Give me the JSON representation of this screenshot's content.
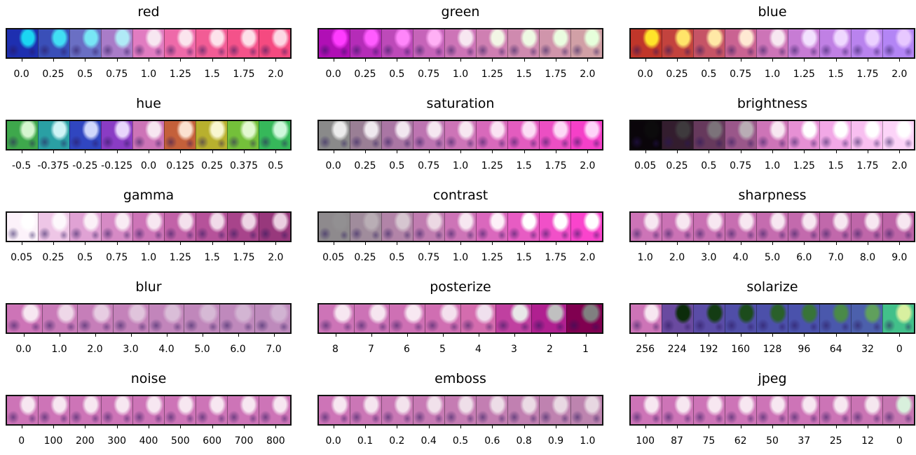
{
  "panels": [
    {
      "title": "red",
      "labels": [
        "0.0",
        "0.25",
        "0.5",
        "0.75",
        "1.0",
        "1.25",
        "1.5",
        "1.75",
        "2.0"
      ],
      "swatches": [
        "#1e2fb0",
        "#3a4fb8",
        "#6a6fc4",
        "#a97cc8",
        "#e17cc1",
        "#ee6aa9",
        "#f25c95",
        "#f4528a",
        "#f54a80"
      ],
      "accent": [
        "#1bd6f2",
        "#41dff4",
        "#78e6f5",
        "#b0eaf6",
        "#f7e7f1",
        "#fbe5ee",
        "#fde3eb",
        "#fde0e9",
        "#fdd8e4"
      ]
    },
    {
      "title": "green",
      "labels": [
        "0.0",
        "0.25",
        "0.5",
        "0.75",
        "1.0",
        "1.25",
        "1.5",
        "1.75",
        "2.0"
      ],
      "swatches": [
        "#b00fb5",
        "#b52cb8",
        "#bd4ab9",
        "#c664b9",
        "#cd74b7",
        "#cf7fb2",
        "#cf8aaf",
        "#d095ab",
        "#d1a0a6"
      ],
      "accent": [
        "#ff3cff",
        "#ff5cff",
        "#ff86fa",
        "#ffb0f5",
        "#f7e7f1",
        "#f2f6e5",
        "#eefae3",
        "#eafde0",
        "#e6ffdb"
      ]
    },
    {
      "title": "blue",
      "labels": [
        "0.0",
        "0.25",
        "0.5",
        "0.75",
        "1.0",
        "1.25",
        "1.5",
        "1.75",
        "2.0"
      ],
      "swatches": [
        "#c0362a",
        "#c3433e",
        "#c65466",
        "#ca6392",
        "#cd74b7",
        "#c77cd4",
        "#c080e4",
        "#b983ee",
        "#b385f5"
      ],
      "accent": [
        "#ffe42a",
        "#ffe56a",
        "#ffe8a6",
        "#ffe9d3",
        "#f7e7f1",
        "#f3e1ff",
        "#efd8ff",
        "#ebd0ff",
        "#e7c8ff"
      ]
    },
    {
      "title": "hue",
      "labels": [
        "-0.5",
        "-0.375",
        "-0.25",
        "-0.125",
        "0.0",
        "0.125",
        "0.25",
        "0.375",
        "0.5"
      ],
      "swatches": [
        "#3ea84c",
        "#2aa0a4",
        "#3046c0",
        "#8a3cc4",
        "#cd74b7",
        "#c4603a",
        "#b8b02e",
        "#74c03a",
        "#36b85a"
      ],
      "accent": [
        "#d6f6d0",
        "#d0f4f6",
        "#d0d8fb",
        "#e8d6fb",
        "#f7e7f1",
        "#fbe2d0",
        "#f8f6d0",
        "#e2f8d0",
        "#d0f8dc"
      ]
    },
    {
      "title": "saturation",
      "labels": [
        "0.0",
        "0.25",
        "0.5",
        "0.75",
        "1.0",
        "1.25",
        "1.5",
        "1.75",
        "2.0"
      ],
      "swatches": [
        "#8a8a8a",
        "#9a7f95",
        "#aa76a4",
        "#bd74b1",
        "#cd74b7",
        "#d869bb",
        "#e35cbf",
        "#ec4fc3",
        "#f540c8"
      ],
      "accent": [
        "#ececec",
        "#efe9ee",
        "#f2e7f0",
        "#f5e7f1",
        "#f7e7f1",
        "#fae2f3",
        "#fcdef5",
        "#fdd9f6",
        "#fed4f8"
      ]
    },
    {
      "title": "brightness",
      "labels": [
        "0.05",
        "0.25",
        "0.5",
        "0.75",
        "1.0",
        "1.25",
        "1.5",
        "1.75",
        "2.0"
      ],
      "swatches": [
        "#0a050a",
        "#331d2e",
        "#66395c",
        "#9a578a",
        "#cd74b7",
        "#e690d4",
        "#f2a8e6",
        "#f8bff0",
        "#fcd4f8"
      ],
      "accent": [
        "#0c0b0c",
        "#3e3a3d",
        "#7c737a",
        "#b9adb5",
        "#f7e7f1",
        "#ffffff",
        "#ffffff",
        "#ffffff",
        "#ffffff"
      ]
    },
    {
      "title": "gamma",
      "labels": [
        "0.05",
        "0.25",
        "0.5",
        "0.75",
        "1.0",
        "1.25",
        "1.5",
        "1.75",
        "2.0"
      ],
      "swatches": [
        "#fcf2fa",
        "#eec6e6",
        "#e0a2d4",
        "#d68ac5",
        "#cd74b7",
        "#c262a8",
        "#b6529a",
        "#a8448b",
        "#98387c"
      ],
      "accent": [
        "#ffffff",
        "#fdf8fc",
        "#fbf1f7",
        "#f9ecf4",
        "#f7e7f1",
        "#f4e1ed",
        "#f1dbe9",
        "#eed5e5",
        "#ebcfe1"
      ]
    },
    {
      "title": "contrast",
      "labels": [
        "0.05",
        "0.25",
        "0.5",
        "0.75",
        "1.0",
        "1.25",
        "1.5",
        "1.75",
        "2.0"
      ],
      "swatches": [
        "#8e8a8d",
        "#a08c9c",
        "#b284a8",
        "#c07cb0",
        "#cd74b7",
        "#da68bd",
        "#e75cc3",
        "#f150c8",
        "#fa44cc"
      ],
      "accent": [
        "#929092",
        "#b9aeb5",
        "#d6c6d0",
        "#ecd8e3",
        "#f7e7f1",
        "#fdf0f8",
        "#ffffff",
        "#ffffff",
        "#ffffff"
      ]
    },
    {
      "title": "sharpness",
      "labels": [
        "1.0",
        "2.0",
        "3.0",
        "4.0",
        "5.0",
        "6.0",
        "7.0",
        "8.0",
        "9.0"
      ],
      "swatches": [
        "#cd74b7",
        "#cb72b5",
        "#c970b3",
        "#c76eb1",
        "#c56caf",
        "#c36aad",
        "#c168ab",
        "#bf66a9",
        "#bd64a7"
      ],
      "accent": [
        "#f7e7f1",
        "#f7e7f1",
        "#f7e7f1",
        "#f7e7f1",
        "#f7e7f1",
        "#f7e7f1",
        "#f7e7f1",
        "#f7e7f1",
        "#f7e7f1"
      ]
    },
    {
      "title": "blur",
      "labels": [
        "0.0",
        "1.0",
        "2.0",
        "3.0",
        "4.0",
        "5.0",
        "6.0",
        "7.0"
      ],
      "swatches": [
        "#cd74b7",
        "#c97ab8",
        "#c67eb9",
        "#c482ba",
        "#c285bb",
        "#c087bb",
        "#bf89bc",
        "#be8abc"
      ],
      "accent": [
        "#f7e7f1",
        "#eed8e8",
        "#e7cde2",
        "#e0c4dc",
        "#dabed8",
        "#d6b9d5",
        "#d3b5d3",
        "#d1b3d2"
      ]
    },
    {
      "title": "posterize",
      "labels": [
        "8",
        "7",
        "6",
        "5",
        "4",
        "3",
        "2",
        "1"
      ],
      "swatches": [
        "#cd74b7",
        "#cc72b6",
        "#ce70b4",
        "#d06eb2",
        "#d46cae",
        "#c040a0",
        "#b02090",
        "#800050"
      ],
      "accent": [
        "#f7e7f1",
        "#f6e6f0",
        "#f8e8f2",
        "#f4e0ee",
        "#f0e0ee",
        "#e8e8e8",
        "#c0c0c0",
        "#808080"
      ]
    },
    {
      "title": "solarize",
      "labels": [
        "256",
        "224",
        "192",
        "160",
        "128",
        "96",
        "64",
        "32",
        "0"
      ],
      "swatches": [
        "#cd74b7",
        "#6a4aa0",
        "#5a4ca6",
        "#504ea8",
        "#4c50aa",
        "#4a52ac",
        "#4a58ac",
        "#4c60ac",
        "#42c08a"
      ],
      "accent": [
        "#f7e7f1",
        "#0c2c0a",
        "#143c14",
        "#1c4c1c",
        "#2a602a",
        "#387438",
        "#4a8a48",
        "#60a05c",
        "#d8f0a0"
      ]
    },
    {
      "title": "noise",
      "labels": [
        "0",
        "100",
        "200",
        "300",
        "400",
        "500",
        "600",
        "700",
        "800"
      ],
      "swatches": [
        "#cd74b7",
        "#cd74b7",
        "#cd74b7",
        "#cd74b7",
        "#cd74b7",
        "#cd74b7",
        "#cd74b7",
        "#cd74b7",
        "#cd74b7"
      ],
      "accent": [
        "#f7e7f1",
        "#f7e7f1",
        "#f7e7f1",
        "#f7e7f1",
        "#f7e7f1",
        "#f7e7f1",
        "#f7e7f1",
        "#f7e7f1",
        "#f7e7f1"
      ]
    },
    {
      "title": "emboss",
      "labels": [
        "0.0",
        "0.1",
        "0.2",
        "0.4",
        "0.5",
        "0.6",
        "0.8",
        "0.9",
        "1.0"
      ],
      "swatches": [
        "#cd74b7",
        "#cb76b6",
        "#c978b5",
        "#c77ab4",
        "#c57cb3",
        "#c37eb2",
        "#c180b1",
        "#bf82b0",
        "#bd84af"
      ],
      "accent": [
        "#f7e7f1",
        "#f5e5ef",
        "#f3e3ed",
        "#f1e1eb",
        "#efdfe9",
        "#eddde7",
        "#ebdbe5",
        "#e9d9e3",
        "#e7d7e1"
      ]
    },
    {
      "title": "jpeg",
      "labels": [
        "100",
        "87",
        "75",
        "62",
        "50",
        "37",
        "25",
        "12",
        "0"
      ],
      "swatches": [
        "#cd74b7",
        "#cd74b7",
        "#cd74b7",
        "#cd74b7",
        "#cd74b7",
        "#cd74b7",
        "#cc74b6",
        "#ca74b4",
        "#c676b2"
      ],
      "accent": [
        "#f7e7f1",
        "#f7e7f1",
        "#f7e7f1",
        "#f7e7f1",
        "#f7e7f1",
        "#f7e7f1",
        "#f7e7f1",
        "#f5e7ef",
        "#d8f0dc"
      ]
    }
  ]
}
